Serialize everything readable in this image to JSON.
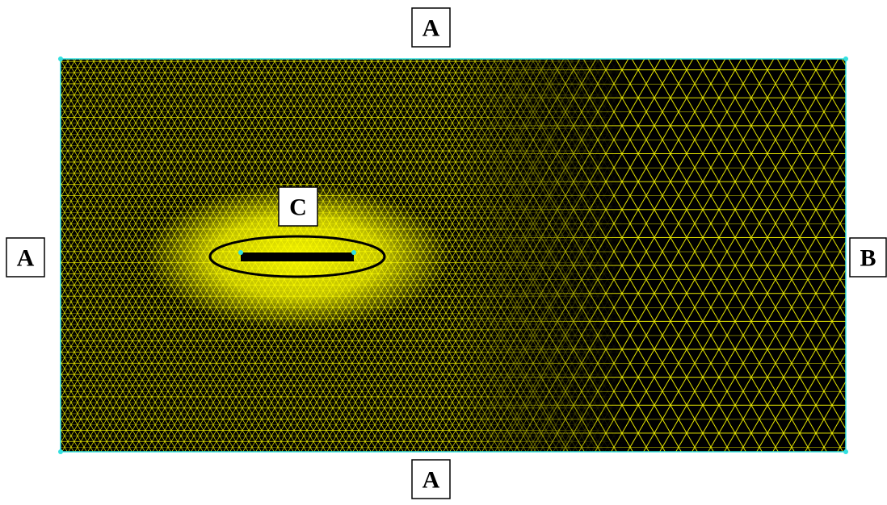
{
  "labels": {
    "top": "A",
    "left": "A",
    "bottom": "A",
    "right": "B",
    "plate": "C"
  }
}
